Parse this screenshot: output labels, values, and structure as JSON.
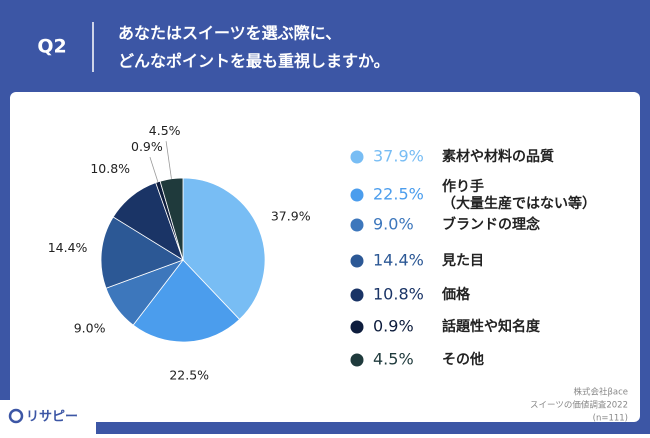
{
  "header": {
    "label": "Q2",
    "question": [
      "あなたはスイーツを選ぶ際に、",
      "どんなポイントを最も重視しますか。"
    ]
  },
  "chart_data": {
    "type": "pie",
    "categories": [
      "素材や材料の品質",
      "作り手\n（大量生産ではない等）",
      "ブランドの理念",
      "見た目",
      "価格",
      "話題性や知名度",
      "その他"
    ],
    "values": [
      37.9,
      22.5,
      9.0,
      14.4,
      10.8,
      0.9,
      4.5
    ],
    "value_labels": [
      "37.9%",
      "22.5%",
      "9.0%",
      "14.4%",
      "10.8%",
      "0.9%",
      "4.5%"
    ],
    "colors": [
      "#78bdf4",
      "#4b9ded",
      "#3d77bc",
      "#2c5895",
      "#1a3466",
      "#0e1d3d",
      "#1f3a3c"
    ]
  },
  "footer": {
    "source": [
      "株式会社βace",
      "スイーツの価値調査2022",
      "(n=111)"
    ],
    "logo": "リサピー"
  }
}
